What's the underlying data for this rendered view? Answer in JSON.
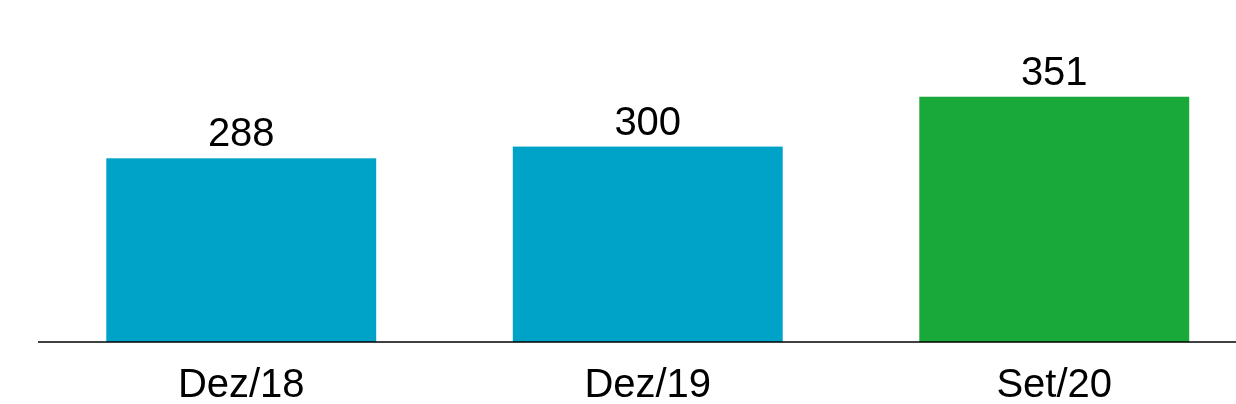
{
  "chart_data": {
    "type": "bar",
    "categories": [
      "Dez/18",
      "Dez/19",
      "Set/20"
    ],
    "values": [
      288,
      300,
      351
    ],
    "colors": [
      "#00a3c8",
      "#00a3c8",
      "#19a83a"
    ],
    "ylim": [
      100,
      450
    ],
    "tick_labels": "x",
    "data_labels": true
  }
}
